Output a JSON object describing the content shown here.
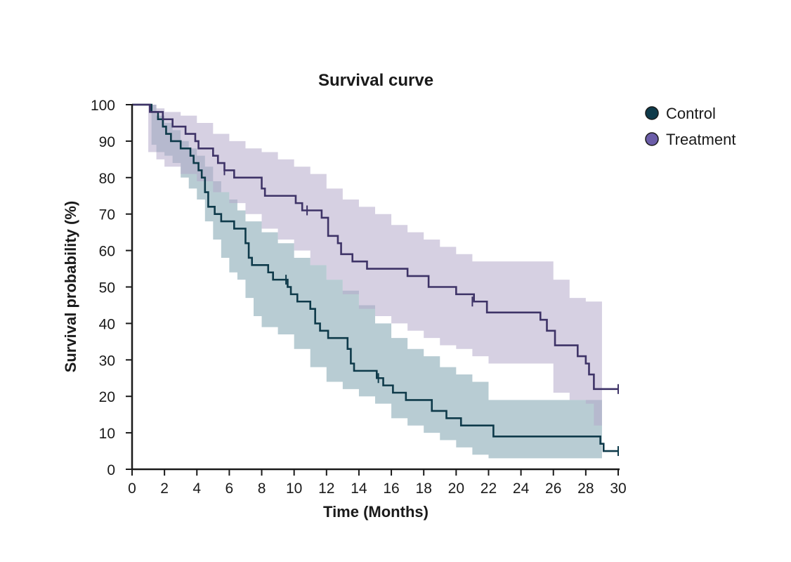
{
  "chart_data": {
    "type": "line",
    "subtype": "kaplan-meier-step",
    "title": "Survival curve",
    "xlabel": "Time (Months)",
    "ylabel": "Survival probability (%)",
    "xlim": [
      0,
      30
    ],
    "ylim": [
      0,
      100
    ],
    "x_ticks": [
      "0",
      "2",
      "4",
      "6",
      "8",
      "10",
      "12",
      "14",
      "16",
      "18",
      "20",
      "22",
      "24",
      "26",
      "28",
      "30"
    ],
    "y_ticks": [
      "0",
      "10",
      "20",
      "30",
      "40",
      "50",
      "60",
      "70",
      "80",
      "90",
      "100"
    ],
    "grid": false,
    "legend_position": "top-right",
    "series": [
      {
        "name": "Control",
        "color": "#0e3a4a",
        "band_color": "#7ea2ae",
        "points": [
          [
            0,
            100
          ],
          [
            1,
            100
          ],
          [
            1.2,
            98
          ],
          [
            1.6,
            96
          ],
          [
            1.9,
            94
          ],
          [
            2.1,
            92
          ],
          [
            2.4,
            90
          ],
          [
            3.0,
            88
          ],
          [
            3.6,
            86
          ],
          [
            3.8,
            84
          ],
          [
            4.1,
            82
          ],
          [
            4.3,
            80
          ],
          [
            4.5,
            76
          ],
          [
            4.7,
            72
          ],
          [
            5.1,
            70
          ],
          [
            5.5,
            68
          ],
          [
            6.3,
            66
          ],
          [
            7.0,
            62
          ],
          [
            7.2,
            58
          ],
          [
            7.4,
            56
          ],
          [
            8.4,
            54
          ],
          [
            8.7,
            52
          ],
          [
            9.6,
            50
          ],
          [
            9.8,
            48
          ],
          [
            10.2,
            46
          ],
          [
            11.0,
            44
          ],
          [
            11.3,
            40
          ],
          [
            11.6,
            38
          ],
          [
            12.1,
            36
          ],
          [
            13.3,
            33
          ],
          [
            13.5,
            29
          ],
          [
            13.7,
            27
          ],
          [
            15.1,
            25
          ],
          [
            15.5,
            23
          ],
          [
            16.1,
            21
          ],
          [
            16.9,
            19
          ],
          [
            18.5,
            16
          ],
          [
            19.4,
            14
          ],
          [
            20.3,
            12
          ],
          [
            22.3,
            9
          ],
          [
            28.9,
            7
          ],
          [
            29.1,
            5
          ],
          [
            30,
            5
          ]
        ],
        "band_upper": [
          [
            0,
            100
          ],
          [
            1,
            100
          ],
          [
            1.5,
            97
          ],
          [
            2,
            95
          ],
          [
            2.5,
            93
          ],
          [
            3,
            90
          ],
          [
            3.5,
            88
          ],
          [
            4,
            86
          ],
          [
            4.5,
            83
          ],
          [
            5,
            79
          ],
          [
            5.5,
            76
          ],
          [
            6,
            74
          ],
          [
            6.5,
            71
          ],
          [
            7,
            68
          ],
          [
            8,
            65
          ],
          [
            9,
            62
          ],
          [
            10,
            58
          ],
          [
            11,
            56
          ],
          [
            12,
            52
          ],
          [
            13,
            49
          ],
          [
            14,
            45
          ],
          [
            15,
            40
          ],
          [
            16,
            36
          ],
          [
            17,
            33
          ],
          [
            18,
            31
          ],
          [
            19,
            28
          ],
          [
            20,
            26
          ],
          [
            21,
            24
          ],
          [
            22,
            19
          ],
          [
            28.5,
            19
          ],
          [
            29,
            19
          ]
        ],
        "band_lower": [
          [
            0,
            100
          ],
          [
            1,
            100
          ],
          [
            1.2,
            89
          ],
          [
            1.5,
            87
          ],
          [
            2,
            86
          ],
          [
            2.5,
            84
          ],
          [
            3,
            80
          ],
          [
            3.5,
            77
          ],
          [
            4,
            74
          ],
          [
            4.5,
            68
          ],
          [
            5,
            63
          ],
          [
            5.5,
            58
          ],
          [
            6,
            54
          ],
          [
            6.5,
            52
          ],
          [
            7,
            47
          ],
          [
            7.5,
            42
          ],
          [
            8,
            39
          ],
          [
            9,
            37
          ],
          [
            10,
            33
          ],
          [
            11,
            28
          ],
          [
            12,
            24
          ],
          [
            13,
            22
          ],
          [
            14,
            20
          ],
          [
            15,
            18
          ],
          [
            16,
            14
          ],
          [
            17,
            12
          ],
          [
            18,
            10
          ],
          [
            19,
            8
          ],
          [
            20,
            6
          ],
          [
            21,
            4
          ],
          [
            22,
            3
          ],
          [
            28.5,
            3
          ],
          [
            29,
            2
          ]
        ],
        "censor_marks": [
          [
            9.5,
            52
          ],
          [
            15.2,
            25
          ],
          [
            30,
            5
          ]
        ]
      },
      {
        "name": "Treatment",
        "color": "#3e3367",
        "band_color": "#b4aacb",
        "points": [
          [
            0,
            100
          ],
          [
            1.1,
            98
          ],
          [
            1.9,
            96
          ],
          [
            2.5,
            94
          ],
          [
            3.3,
            92
          ],
          [
            3.9,
            90
          ],
          [
            4.1,
            88
          ],
          [
            5.0,
            86
          ],
          [
            5.3,
            84
          ],
          [
            5.7,
            82
          ],
          [
            6.3,
            80
          ],
          [
            8.0,
            77
          ],
          [
            8.2,
            75
          ],
          [
            10.1,
            73
          ],
          [
            10.5,
            71
          ],
          [
            11.7,
            69
          ],
          [
            12.1,
            64
          ],
          [
            12.7,
            62
          ],
          [
            12.9,
            59
          ],
          [
            13.6,
            57
          ],
          [
            14.5,
            55
          ],
          [
            17.0,
            53
          ],
          [
            18.3,
            50
          ],
          [
            20.0,
            48
          ],
          [
            21.1,
            46
          ],
          [
            21.9,
            43
          ],
          [
            25.2,
            41
          ],
          [
            25.6,
            38
          ],
          [
            26.1,
            34
          ],
          [
            27.5,
            31
          ],
          [
            28.0,
            29
          ],
          [
            28.2,
            26
          ],
          [
            28.5,
            22
          ],
          [
            30,
            22
          ]
        ],
        "band_upper": [
          [
            0,
            100
          ],
          [
            1,
            100
          ],
          [
            1.5,
            99
          ],
          [
            2,
            98
          ],
          [
            3,
            97
          ],
          [
            4,
            95
          ],
          [
            5,
            92
          ],
          [
            6,
            90
          ],
          [
            7,
            88
          ],
          [
            8,
            87
          ],
          [
            9,
            85
          ],
          [
            10,
            83
          ],
          [
            11,
            81
          ],
          [
            12,
            77
          ],
          [
            13,
            74
          ],
          [
            14,
            72
          ],
          [
            15,
            70
          ],
          [
            16,
            67
          ],
          [
            17,
            65
          ],
          [
            18,
            63
          ],
          [
            19,
            61
          ],
          [
            20,
            59
          ],
          [
            21,
            57
          ],
          [
            25,
            57
          ],
          [
            26,
            52
          ],
          [
            27,
            47
          ],
          [
            28,
            46
          ],
          [
            28.5,
            46
          ],
          [
            29,
            45
          ]
        ],
        "band_lower": [
          [
            0,
            100
          ],
          [
            1,
            87
          ],
          [
            1.5,
            85
          ],
          [
            2,
            83
          ],
          [
            3,
            81
          ],
          [
            4,
            79
          ],
          [
            5,
            76
          ],
          [
            6,
            73
          ],
          [
            7,
            70
          ],
          [
            8,
            66
          ],
          [
            9,
            63
          ],
          [
            10,
            60
          ],
          [
            11,
            56
          ],
          [
            12,
            52
          ],
          [
            13,
            48
          ],
          [
            14,
            44
          ],
          [
            15,
            42
          ],
          [
            16,
            40
          ],
          [
            17,
            38
          ],
          [
            18,
            36
          ],
          [
            19,
            34
          ],
          [
            20,
            33
          ],
          [
            21,
            31
          ],
          [
            22,
            29
          ],
          [
            25,
            29
          ],
          [
            26,
            21
          ],
          [
            27,
            19
          ],
          [
            28,
            18
          ],
          [
            28.5,
            12
          ],
          [
            29,
            18
          ]
        ],
        "censor_marks": [
          [
            5.7,
            82
          ],
          [
            10.8,
            71
          ],
          [
            21.0,
            46
          ],
          [
            30,
            22
          ]
        ]
      }
    ]
  }
}
